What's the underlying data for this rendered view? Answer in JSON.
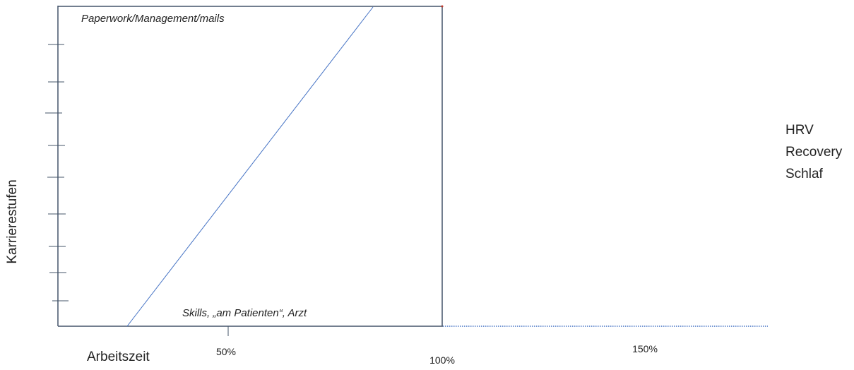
{
  "diagram": {
    "y_axis_title": "Karrierestufen",
    "x_axis_title": "Arbeitszeit",
    "top_label": "Paperwork/Management/mails",
    "bottom_label": "Skills, „am Patienten“, Arzt",
    "x_ticks": [
      "50%",
      "100%",
      "150%"
    ],
    "y_tick_count": 9,
    "recovery_items": [
      "HRV",
      "Recovery",
      "Schlaf"
    ]
  },
  "colors": {
    "line": "#44546a",
    "diagonal": "#4472c4",
    "dotted": "#4472c4",
    "text": "#222222"
  }
}
